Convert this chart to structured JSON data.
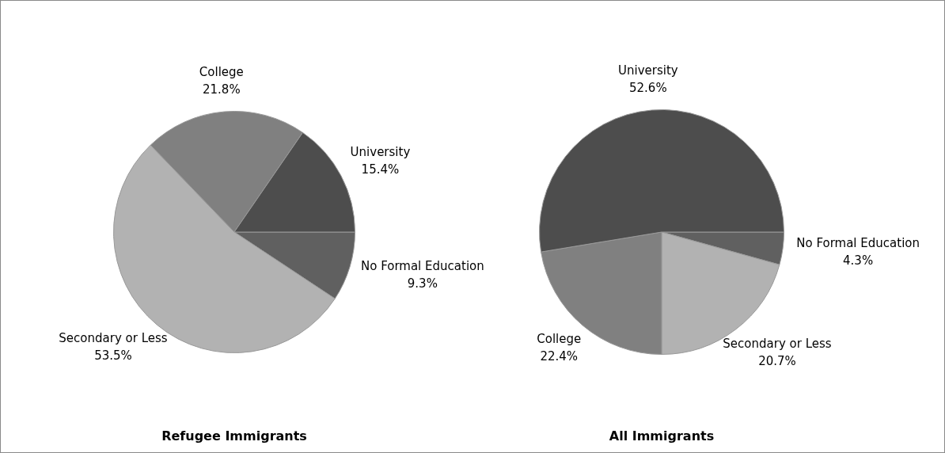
{
  "chart_data": [
    {
      "type": "pie",
      "title": "Refugee Immigrants",
      "categories": [
        "No Formal Education",
        "Secondary or Less",
        "College",
        "University"
      ],
      "values": [
        9.3,
        53.5,
        21.8,
        15.4
      ],
      "value_labels": [
        "9.3%",
        "53.5%",
        "21.8%",
        "15.4%"
      ],
      "colors": [
        "#606060",
        "#b2b2b2",
        "#808080",
        "#4d4d4d"
      ],
      "legend": false
    },
    {
      "type": "pie",
      "title": "All Immigrants",
      "categories": [
        "No Formal Education",
        "Secondary or Less",
        "College",
        "University"
      ],
      "values": [
        4.3,
        20.7,
        22.4,
        52.6
      ],
      "value_labels": [
        "4.3%",
        "20.7%",
        "22.4%",
        "52.6%"
      ],
      "colors": [
        "#606060",
        "#b2b2b2",
        "#808080",
        "#4d4d4d"
      ],
      "legend": false
    }
  ]
}
